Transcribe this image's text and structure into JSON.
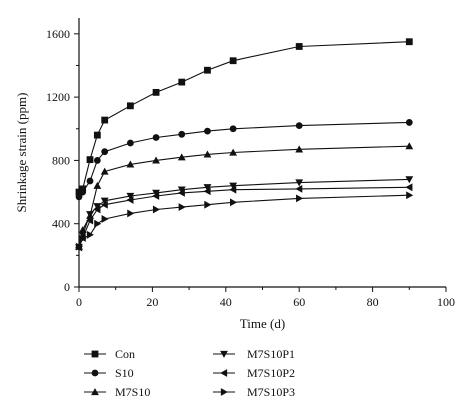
{
  "chart_data": {
    "type": "line",
    "xlabel": "Time (d)",
    "ylabel": "Shrinkage strain (ppm)",
    "xlim": [
      0,
      100
    ],
    "ylim": [
      0,
      1700
    ],
    "xticks": [
      0,
      20,
      40,
      60,
      80,
      100
    ],
    "yticks": [
      0,
      400,
      800,
      1200,
      1600
    ],
    "x_tick_labels": [
      "0",
      "20",
      "40",
      "60",
      "80",
      "100"
    ],
    "y_tick_labels": [
      "0",
      "400",
      "800",
      "1200",
      "1600"
    ],
    "grid": false,
    "legend_position": "bottom-left",
    "series": [
      {
        "name": "Con",
        "marker": "square",
        "x": [
          0,
          1,
          3,
          5,
          7,
          14,
          21,
          28,
          35,
          42,
          60,
          90
        ],
        "y": [
          600,
          620,
          805,
          960,
          1055,
          1145,
          1230,
          1295,
          1370,
          1430,
          1520,
          1550
        ]
      },
      {
        "name": "S10",
        "marker": "circle",
        "x": [
          0,
          1,
          3,
          5,
          7,
          14,
          21,
          28,
          35,
          42,
          60,
          90
        ],
        "y": [
          570,
          600,
          670,
          800,
          855,
          910,
          945,
          965,
          985,
          1000,
          1020,
          1040
        ]
      },
      {
        "name": "M7S10",
        "marker": "triangle-up",
        "x": [
          0,
          1,
          3,
          5,
          7,
          14,
          21,
          28,
          35,
          42,
          60,
          90
        ],
        "y": [
          255,
          360,
          450,
          640,
          730,
          775,
          800,
          820,
          838,
          850,
          870,
          890
        ]
      },
      {
        "name": "M7S10P1",
        "marker": "triangle-down",
        "x": [
          0,
          1,
          3,
          5,
          7,
          14,
          21,
          28,
          35,
          42,
          60,
          90
        ],
        "y": [
          250,
          330,
          460,
          510,
          545,
          575,
          595,
          615,
          630,
          640,
          660,
          680
        ]
      },
      {
        "name": "M7S10P2",
        "marker": "triangle-left",
        "x": [
          0,
          1,
          3,
          5,
          7,
          14,
          21,
          28,
          35,
          42,
          60,
          90
        ],
        "y": [
          250,
          310,
          420,
          490,
          520,
          550,
          575,
          595,
          605,
          615,
          620,
          630
        ]
      },
      {
        "name": "M7S10P3",
        "marker": "triangle-right",
        "x": [
          0,
          1,
          3,
          5,
          7,
          14,
          21,
          28,
          35,
          42,
          60,
          90
        ],
        "y": [
          255,
          305,
          330,
          400,
          430,
          465,
          490,
          505,
          520,
          535,
          560,
          580
        ]
      }
    ]
  }
}
